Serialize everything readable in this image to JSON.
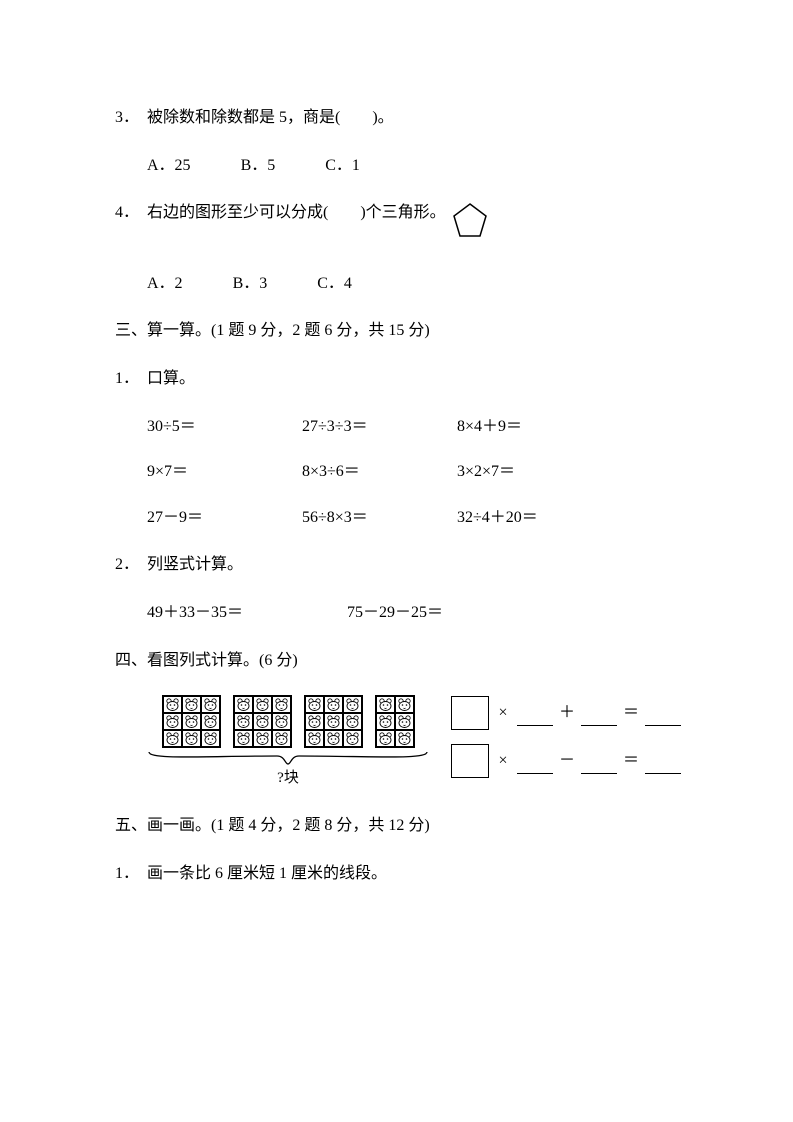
{
  "q3": {
    "num": "3．",
    "text": "被除数和除数都是 5，商是(　　)。",
    "opts": {
      "a": "A．25",
      "b": "B．5",
      "c": "C．1"
    }
  },
  "q4": {
    "num": "4．",
    "text": "右边的图形至少可以分成(　　)个三角形。",
    "opts": {
      "a": "A．2",
      "b": "B．3",
      "c": "C．4"
    },
    "pentagon": {
      "stroke": "#000000",
      "fill": "none",
      "stroke_width": 1.5
    }
  },
  "s3": {
    "head": "三、算一算。(1 题 9 分，2 题 6 分，共 15 分)",
    "q1": {
      "num": "1．",
      "label": "口算。",
      "rows": [
        [
          "30÷5＝",
          "27÷3÷3＝",
          "8×4＋9＝"
        ],
        [
          "9×7＝",
          "8×3÷6＝",
          "3×2×7＝"
        ],
        [
          "27－9＝",
          "56÷8×3＝",
          "32÷4＋20＝"
        ]
      ]
    },
    "q2": {
      "num": "2．",
      "label": "列竖式计算。",
      "items": [
        "49＋33－35＝",
        "75－29－25＝"
      ]
    }
  },
  "s4": {
    "head": "四、看图列式计算。(6 分)",
    "blocks": {
      "full_count": 3,
      "partial_cols": 2,
      "rows": 3,
      "caption": "?块",
      "border_color": "#000000"
    },
    "eq": {
      "line1": {
        "op1": "×",
        "op2": "＋",
        "eq": "＝"
      },
      "line2": {
        "op1": "×",
        "op2": "－",
        "eq": "＝"
      }
    }
  },
  "s5": {
    "head": "五、画一画。(1 题 4 分，2 题 8 分，共 12 分)",
    "q1": {
      "num": "1．",
      "text": "画一条比 6 厘米短 1 厘米的线段。"
    }
  },
  "style": {
    "font_family": "SimSun",
    "font_size_pt": 12,
    "text_color": "#000000",
    "background": "#ffffff"
  }
}
